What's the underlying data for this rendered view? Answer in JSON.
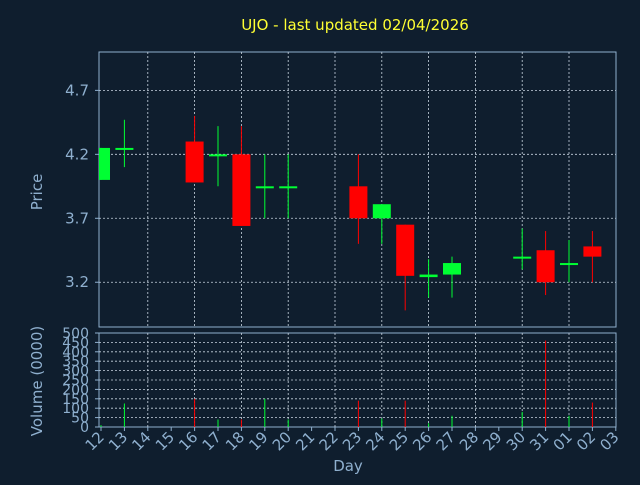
{
  "title": "UJO - last updated 02/04/2026",
  "colors": {
    "background": "#0f1e2e",
    "up": "#00ff33",
    "down": "#ff0000",
    "title": "#ffff33",
    "axis": "#8fb0cf"
  },
  "chart_data": [
    {
      "type": "candlestick",
      "title": "UJO - last updated 02/04/2026",
      "ylabel": "Price",
      "ylim": [
        2.85,
        5.0
      ],
      "yticks": [
        "4.7",
        "4.2",
        "3.7",
        "3.2"
      ],
      "grid": true,
      "categories": [
        "12",
        "13",
        "14",
        "15",
        "16",
        "17",
        "18",
        "19",
        "20",
        "21",
        "22",
        "23",
        "24",
        "25",
        "26",
        "27",
        "28",
        "29",
        "30",
        "31",
        "01",
        "02",
        "03"
      ],
      "candles": [
        {
          "x": "12",
          "open": 4.0,
          "high": 4.25,
          "low": 4.0,
          "close": 4.25
        },
        {
          "x": "13",
          "open": 4.24,
          "high": 4.47,
          "low": 4.1,
          "close": 4.25
        },
        {
          "x": "16",
          "open": 4.3,
          "high": 4.5,
          "low": 3.98,
          "close": 3.98
        },
        {
          "x": "17",
          "open": 4.19,
          "high": 4.42,
          "low": 3.95,
          "close": 4.2
        },
        {
          "x": "18",
          "open": 4.2,
          "high": 4.42,
          "low": 3.64,
          "close": 3.64
        },
        {
          "x": "19",
          "open": 3.94,
          "high": 4.2,
          "low": 3.7,
          "close": 3.95
        },
        {
          "x": "20",
          "open": 3.94,
          "high": 4.2,
          "low": 3.7,
          "close": 3.95
        },
        {
          "x": "23",
          "open": 3.95,
          "high": 4.2,
          "low": 3.5,
          "close": 3.7
        },
        {
          "x": "24",
          "open": 3.7,
          "high": 3.81,
          "low": 3.5,
          "close": 3.81
        },
        {
          "x": "25",
          "open": 3.65,
          "high": 3.65,
          "low": 2.98,
          "close": 3.25
        },
        {
          "x": "26",
          "open": 3.24,
          "high": 3.38,
          "low": 3.08,
          "close": 3.26
        },
        {
          "x": "27",
          "open": 3.26,
          "high": 3.4,
          "low": 3.08,
          "close": 3.35
        },
        {
          "x": "30",
          "open": 3.39,
          "high": 3.62,
          "low": 3.3,
          "close": 3.4
        },
        {
          "x": "31",
          "open": 3.45,
          "high": 3.6,
          "low": 3.1,
          "close": 3.2
        },
        {
          "x": "01",
          "open": 3.34,
          "high": 3.53,
          "low": 3.2,
          "close": 3.35
        },
        {
          "x": "02",
          "open": 3.48,
          "high": 3.6,
          "low": 3.2,
          "close": 3.4
        }
      ]
    },
    {
      "type": "bar",
      "ylabel": "Volume (0000)",
      "xlabel": "Day",
      "ylim": [
        0,
        500
      ],
      "yticks": [
        "500",
        "450",
        "400",
        "350",
        "300",
        "250",
        "200",
        "150",
        "100",
        "50",
        "0"
      ],
      "grid": true,
      "categories": [
        "12",
        "13",
        "14",
        "15",
        "16",
        "17",
        "18",
        "19",
        "20",
        "21",
        "22",
        "23",
        "24",
        "25",
        "26",
        "27",
        "28",
        "29",
        "30",
        "31",
        "01",
        "02",
        "03"
      ],
      "bars": [
        {
          "x": "12",
          "value": 10,
          "dir": "up"
        },
        {
          "x": "13",
          "value": 125,
          "dir": "up"
        },
        {
          "x": "16",
          "value": 150,
          "dir": "down"
        },
        {
          "x": "17",
          "value": 40,
          "dir": "up"
        },
        {
          "x": "18",
          "value": 40,
          "dir": "down"
        },
        {
          "x": "19",
          "value": 150,
          "dir": "up"
        },
        {
          "x": "20",
          "value": 40,
          "dir": "up"
        },
        {
          "x": "23",
          "value": 140,
          "dir": "down"
        },
        {
          "x": "24",
          "value": 45,
          "dir": "up"
        },
        {
          "x": "25",
          "value": 140,
          "dir": "down"
        },
        {
          "x": "26",
          "value": 20,
          "dir": "up"
        },
        {
          "x": "27",
          "value": 60,
          "dir": "up"
        },
        {
          "x": "30",
          "value": 80,
          "dir": "up"
        },
        {
          "x": "31",
          "value": 460,
          "dir": "down"
        },
        {
          "x": "01",
          "value": 60,
          "dir": "up"
        },
        {
          "x": "02",
          "value": 130,
          "dir": "down"
        }
      ]
    }
  ]
}
